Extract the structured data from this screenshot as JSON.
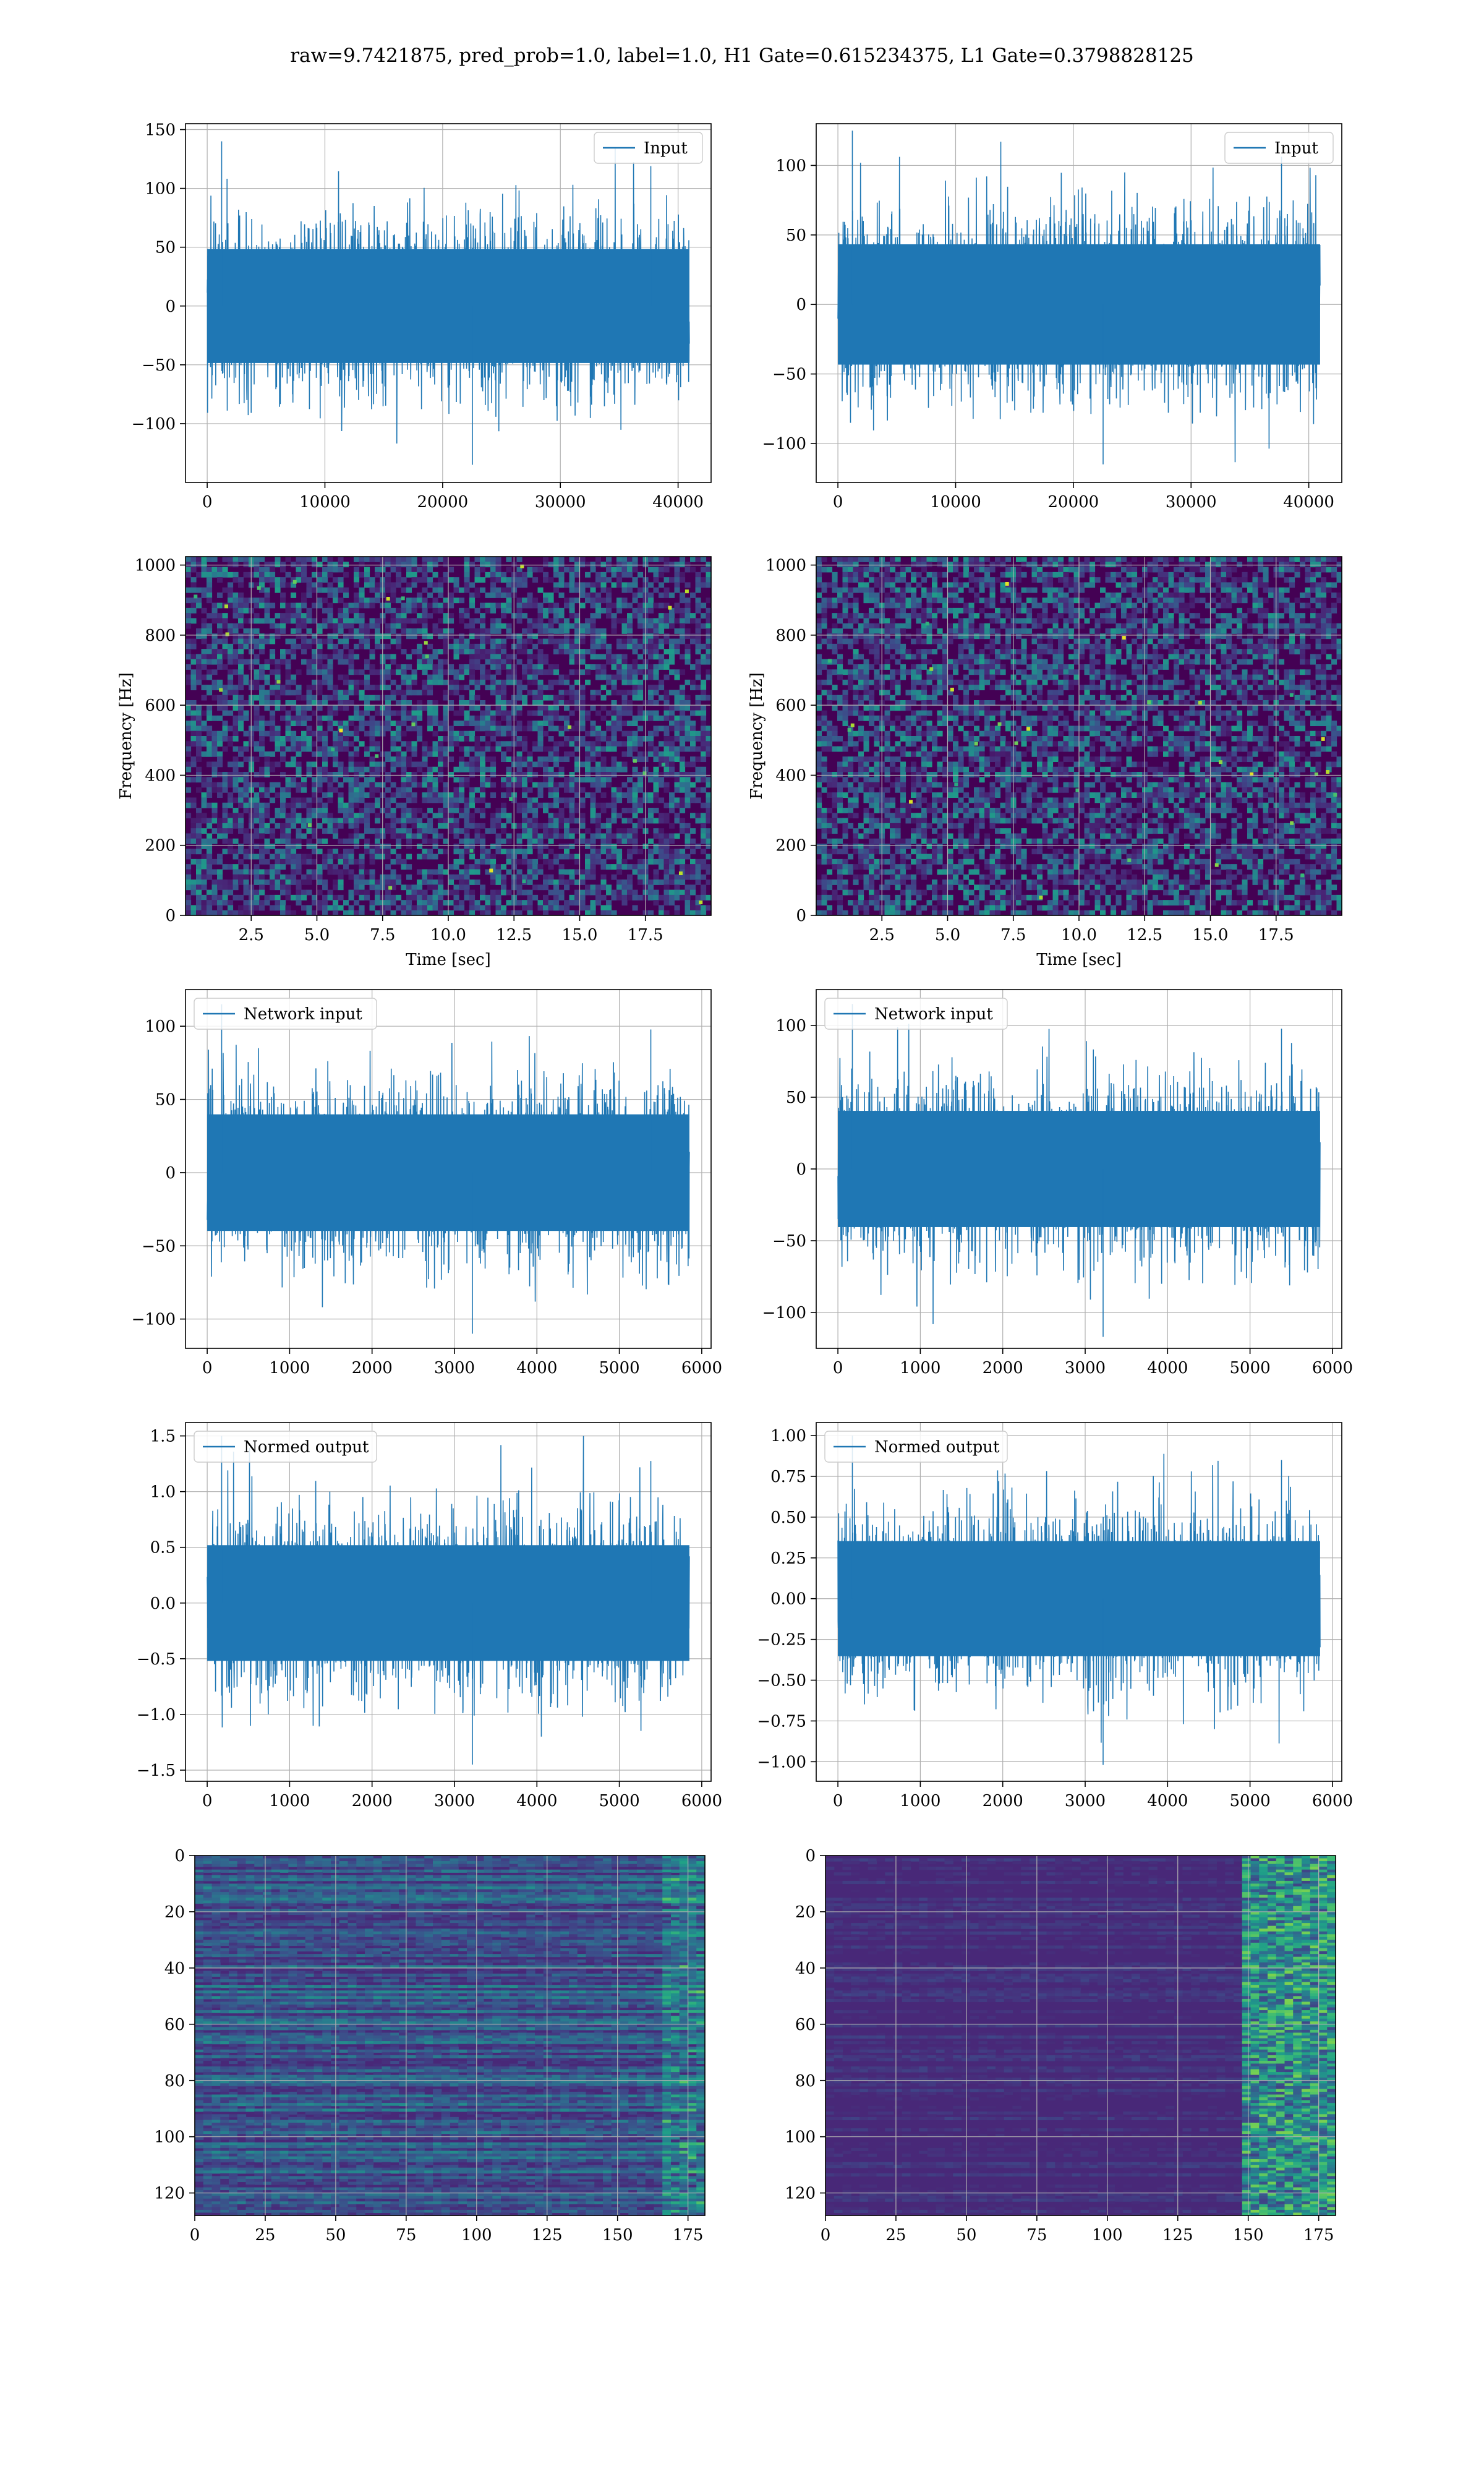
{
  "figure": {
    "title": "raw=9.7421875, pred_prob=1.0, label=1.0, H1 Gate=0.615234375, L1 Gate=0.3798828125"
  },
  "colors": {
    "line": "#1f77b4",
    "grid": "#b0b0b0",
    "viridis": [
      "#440154",
      "#482878",
      "#3e4989",
      "#31688e",
      "#26828e",
      "#1f9e89",
      "#35b779",
      "#6ece58",
      "#b5de2b",
      "#fde725"
    ]
  },
  "chart_data": [
    {
      "id": "input-h1",
      "type": "line",
      "legend": "Input",
      "legend_loc": "upper right",
      "x_range": [
        0,
        40960
      ],
      "ylim": [
        -150,
        155
      ],
      "xticks": [
        0,
        10000,
        20000,
        30000,
        40000
      ],
      "yticks": [
        -100,
        -50,
        0,
        50,
        100,
        150
      ],
      "amplitude_envelope": [
        -135,
        140
      ],
      "grid": true
    },
    {
      "id": "input-l1",
      "type": "line",
      "legend": "Input",
      "legend_loc": "upper right",
      "x_range": [
        0,
        40960
      ],
      "ylim": [
        -128,
        130
      ],
      "xticks": [
        0,
        10000,
        20000,
        30000,
        40000
      ],
      "yticks": [
        -100,
        -50,
        0,
        50,
        100
      ],
      "amplitude_envelope": [
        -115,
        125
      ],
      "grid": true
    },
    {
      "id": "spec-h1",
      "type": "heatmap",
      "xlabel": "Time [sec]",
      "ylabel": "Frequency [Hz]",
      "xlim": [
        0,
        20
      ],
      "ylim": [
        0,
        1024
      ],
      "xticks": [
        2.5,
        5.0,
        7.5,
        10.0,
        12.5,
        15.0,
        17.5
      ],
      "yticks": [
        0,
        200,
        400,
        600,
        800,
        1000
      ],
      "grid": true
    },
    {
      "id": "spec-l1",
      "type": "heatmap",
      "xlabel": "Time [sec]",
      "ylabel": "Frequency [Hz]",
      "xlim": [
        0,
        20
      ],
      "ylim": [
        0,
        1024
      ],
      "xticks": [
        2.5,
        5.0,
        7.5,
        10.0,
        12.5,
        15.0,
        17.5
      ],
      "yticks": [
        0,
        200,
        400,
        600,
        800,
        1000
      ],
      "grid": true
    },
    {
      "id": "net-h1",
      "type": "line",
      "legend": "Network input",
      "legend_loc": "upper left",
      "x_range": [
        0,
        5850
      ],
      "ylim": [
        -120,
        125
      ],
      "xticks": [
        0,
        1000,
        2000,
        3000,
        4000,
        5000,
        6000
      ],
      "yticks": [
        -100,
        -50,
        0,
        50,
        100
      ],
      "amplitude_envelope": [
        -110,
        115
      ],
      "grid": true
    },
    {
      "id": "net-l1",
      "type": "line",
      "legend": "Network input",
      "legend_loc": "upper left",
      "x_range": [
        0,
        5850
      ],
      "ylim": [
        -125,
        125
      ],
      "xticks": [
        0,
        1000,
        2000,
        3000,
        4000,
        5000,
        6000
      ],
      "yticks": [
        -100,
        -50,
        0,
        50,
        100
      ],
      "amplitude_envelope": [
        -117,
        115
      ],
      "grid": true
    },
    {
      "id": "norm-h1",
      "type": "line",
      "legend": "Normed output",
      "legend_loc": "upper left",
      "x_range": [
        0,
        5850
      ],
      "ylim": [
        -1.6,
        1.62
      ],
      "xticks": [
        0,
        1000,
        2000,
        3000,
        4000,
        5000,
        6000
      ],
      "yticks": [
        -1.5,
        -1.0,
        -0.5,
        0.0,
        0.5,
        1.0,
        1.5
      ],
      "ytick_labels": [
        "−1.5",
        "−1.0",
        "−0.5",
        "0.0",
        "0.5",
        "1.0",
        "1.5"
      ],
      "amplitude_envelope": [
        -1.45,
        1.5
      ],
      "grid": true
    },
    {
      "id": "norm-l1",
      "type": "line",
      "legend": "Normed output",
      "legend_loc": "upper left",
      "x_range": [
        0,
        5850
      ],
      "ylim": [
        -1.12,
        1.08
      ],
      "xticks": [
        0,
        1000,
        2000,
        3000,
        4000,
        5000,
        6000
      ],
      "yticks": [
        -1.0,
        -0.75,
        -0.5,
        -0.25,
        0.0,
        0.25,
        0.5,
        0.75,
        1.0
      ],
      "ytick_labels": [
        "−1.00",
        "−0.75",
        "−0.50",
        "−0.25",
        "0.00",
        "0.25",
        "0.50",
        "0.75",
        "1.00"
      ],
      "amplitude_envelope": [
        -1.02,
        1.0
      ],
      "grid": true
    },
    {
      "id": "feat-h1",
      "type": "heatmap",
      "xlim": [
        0,
        181
      ],
      "ylim": [
        128,
        0
      ],
      "xticks": [
        0,
        25,
        50,
        75,
        100,
        125,
        150,
        175
      ],
      "yticks": [
        0,
        20,
        40,
        60,
        80,
        100,
        120
      ],
      "grid": true
    },
    {
      "id": "feat-l1",
      "type": "heatmap",
      "xlim": [
        0,
        181
      ],
      "ylim": [
        128,
        0
      ],
      "xticks": [
        0,
        25,
        50,
        75,
        100,
        125,
        150,
        175
      ],
      "yticks": [
        0,
        20,
        40,
        60,
        80,
        100,
        120
      ],
      "grid": true
    }
  ]
}
